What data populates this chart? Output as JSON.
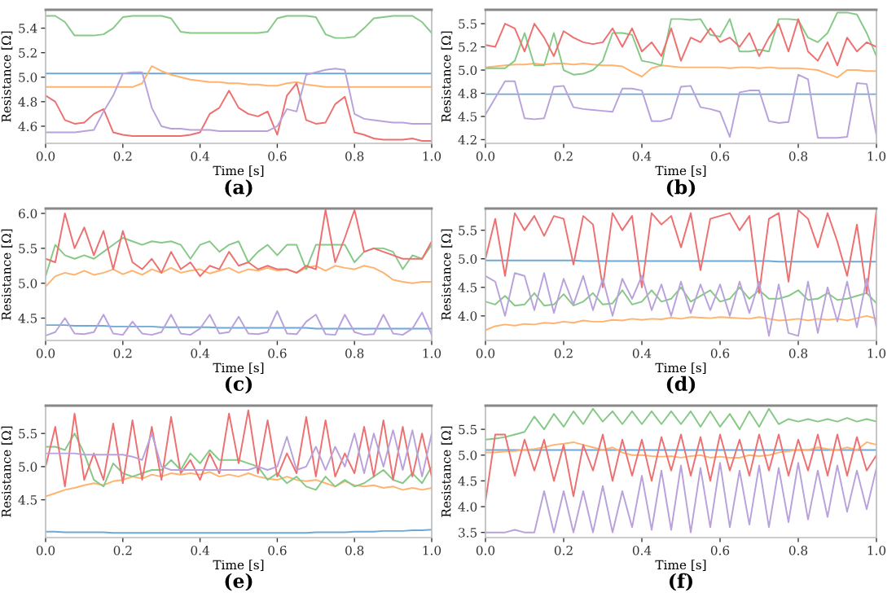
{
  "chart_data": [
    {
      "type": "line",
      "xlabel": "Time [s]",
      "ylabel": "Resistance [Ω]",
      "annotations": [
        "(a)"
      ],
      "x": [
        0,
        0.025,
        0.05,
        0.075,
        0.1,
        0.125,
        0.15,
        0.175,
        0.2,
        0.225,
        0.25,
        0.275,
        0.3,
        0.325,
        0.35,
        0.375,
        0.4,
        0.425,
        0.45,
        0.475,
        0.5,
        0.525,
        0.55,
        0.575,
        0.6,
        0.625,
        0.65,
        0.675,
        0.7,
        0.725,
        0.75,
        0.775,
        0.8,
        0.825,
        0.85,
        0.875,
        0.9,
        0.925,
        0.95,
        0.975,
        1.0
      ],
      "xlim": [
        0,
        1
      ],
      "xticks": [
        {
          "value": 0,
          "label": "0.0"
        },
        {
          "value": 0.2,
          "label": "0.2"
        },
        {
          "value": 0.4,
          "label": "0.4"
        },
        {
          "value": 0.6,
          "label": "0.6"
        },
        {
          "value": 0.8,
          "label": "0.8"
        },
        {
          "value": 1,
          "label": "1.0"
        }
      ],
      "ylim": [
        4.46,
        5.55
      ],
      "yticks": [
        {
          "value": 4.6,
          "label": "4.6"
        },
        {
          "value": 4.8,
          "label": "4.8"
        },
        {
          "value": 5.0,
          "label": "5.0"
        },
        {
          "value": 5.2,
          "label": "5.2"
        },
        {
          "value": 5.4,
          "label": "5.4"
        }
      ],
      "series": [
        {
          "color": "#6ea8d6",
          "values": [
            5.03,
            5.03,
            5.03,
            5.03,
            5.03,
            5.03,
            5.03,
            5.03,
            5.03,
            5.03,
            5.03,
            5.03,
            5.03,
            5.03,
            5.03,
            5.03,
            5.03,
            5.03,
            5.03,
            5.03,
            5.03,
            5.03,
            5.03,
            5.03,
            5.03,
            5.03,
            5.03,
            5.03,
            5.03,
            5.03,
            5.03,
            5.03,
            5.03,
            5.03,
            5.03,
            5.03,
            5.03,
            5.03,
            5.03,
            5.03,
            5.03
          ]
        },
        {
          "color": "#ffb36e",
          "values": [
            4.92,
            4.92,
            4.92,
            4.92,
            4.92,
            4.92,
            4.92,
            4.92,
            4.92,
            4.92,
            4.95,
            5.09,
            5.05,
            5.02,
            5.0,
            4.98,
            4.97,
            4.96,
            4.96,
            4.95,
            4.95,
            4.94,
            4.94,
            4.93,
            4.93,
            4.95,
            4.96,
            4.94,
            4.93,
            4.92,
            4.92,
            4.92,
            4.92,
            4.92,
            4.92,
            4.92,
            4.92,
            4.92,
            4.92,
            4.92,
            4.92
          ]
        },
        {
          "color": "#86c986",
          "values": [
            5.5,
            5.5,
            5.45,
            5.34,
            5.34,
            5.34,
            5.35,
            5.4,
            5.49,
            5.5,
            5.5,
            5.5,
            5.5,
            5.48,
            5.37,
            5.36,
            5.36,
            5.36,
            5.36,
            5.36,
            5.36,
            5.36,
            5.36,
            5.37,
            5.48,
            5.5,
            5.5,
            5.5,
            5.49,
            5.35,
            5.32,
            5.32,
            5.33,
            5.4,
            5.48,
            5.49,
            5.5,
            5.5,
            5.5,
            5.45,
            5.36
          ]
        },
        {
          "color": "#ee6f6f",
          "values": [
            4.85,
            4.8,
            4.65,
            4.62,
            4.63,
            4.7,
            4.74,
            4.55,
            4.53,
            4.52,
            4.52,
            4.52,
            4.52,
            4.52,
            4.52,
            4.53,
            4.55,
            4.7,
            4.75,
            4.89,
            4.75,
            4.7,
            4.68,
            4.72,
            4.53,
            4.85,
            4.95,
            4.65,
            4.62,
            4.63,
            4.78,
            4.84,
            4.55,
            4.53,
            4.5,
            4.49,
            4.49,
            4.49,
            4.5,
            4.48,
            4.48
          ]
        },
        {
          "color": "#b9a2dc",
          "values": [
            4.55,
            4.55,
            4.55,
            4.55,
            4.56,
            4.57,
            4.72,
            4.85,
            5.03,
            5.04,
            5.04,
            4.75,
            4.6,
            4.58,
            4.58,
            4.57,
            4.57,
            4.57,
            4.56,
            4.56,
            4.56,
            4.56,
            4.56,
            4.56,
            4.6,
            4.74,
            4.72,
            5.02,
            5.04,
            5.06,
            5.07,
            5.06,
            4.7,
            4.66,
            4.65,
            4.64,
            4.63,
            4.63,
            4.62,
            4.62,
            4.62
          ]
        }
      ]
    },
    {
      "type": "line",
      "xlabel": "Time [s]",
      "ylabel": "Resistance [Ω]",
      "annotations": [
        "(b)"
      ],
      "x": [
        0,
        0.025,
        0.05,
        0.075,
        0.1,
        0.125,
        0.15,
        0.175,
        0.2,
        0.225,
        0.25,
        0.275,
        0.3,
        0.325,
        0.35,
        0.375,
        0.4,
        0.425,
        0.45,
        0.475,
        0.5,
        0.525,
        0.55,
        0.575,
        0.6,
        0.625,
        0.65,
        0.675,
        0.7,
        0.725,
        0.75,
        0.775,
        0.8,
        0.825,
        0.85,
        0.875,
        0.9,
        0.925,
        0.95,
        0.975,
        1.0
      ],
      "xlim": [
        0,
        1
      ],
      "xticks": [
        {
          "value": 0,
          "label": "0.0"
        },
        {
          "value": 0.2,
          "label": "0.2"
        },
        {
          "value": 0.4,
          "label": "0.4"
        },
        {
          "value": 0.6,
          "label": "0.6"
        },
        {
          "value": 0.8,
          "label": "0.8"
        },
        {
          "value": 1,
          "label": "1.0"
        }
      ],
      "ylim": [
        4.21,
        5.65
      ],
      "yticks": [
        {
          "value": 4.25,
          "label": "4.2"
        },
        {
          "value": 4.5,
          "label": "4.5"
        },
        {
          "value": 4.75,
          "label": "4.8"
        },
        {
          "value": 5.0,
          "label": "5.0"
        },
        {
          "value": 5.25,
          "label": "5.2"
        },
        {
          "value": 5.5,
          "label": "5.5"
        }
      ],
      "series": [
        {
          "color": "#6ea8d6",
          "values": [
            4.74,
            4.74,
            4.74,
            4.74,
            4.74,
            4.74,
            4.74,
            4.74,
            4.74,
            4.74,
            4.74,
            4.74,
            4.74,
            4.74,
            4.74,
            4.74,
            4.74,
            4.74,
            4.74,
            4.74,
            4.74,
            4.74,
            4.74,
            4.74,
            4.74,
            4.74,
            4.74,
            4.74,
            4.74,
            4.74,
            4.74,
            4.74,
            4.74,
            4.74,
            4.74,
            4.74,
            4.74,
            4.74,
            4.74,
            4.74,
            4.74
          ]
        },
        {
          "color": "#ffb36e",
          "values": [
            5.03,
            5.04,
            5.05,
            5.06,
            5.06,
            5.07,
            5.06,
            5.07,
            5.07,
            5.06,
            5.07,
            5.06,
            5.05,
            5.05,
            5.04,
            4.98,
            4.93,
            5.02,
            5.05,
            5.04,
            5.03,
            5.03,
            5.03,
            5.03,
            5.03,
            5.02,
            5.03,
            5.03,
            5.02,
            5.03,
            5.02,
            5.02,
            5.02,
            5.01,
            5.0,
            4.96,
            4.92,
            5.0,
            5.0,
            4.99,
            4.99
          ]
        },
        {
          "color": "#86c986",
          "values": [
            5.02,
            5.02,
            5.02,
            5.1,
            5.4,
            5.05,
            5.05,
            5.4,
            5.0,
            4.95,
            4.96,
            5.0,
            5.1,
            5.4,
            5.4,
            5.38,
            5.1,
            5.08,
            5.05,
            5.55,
            5.55,
            5.54,
            5.55,
            5.38,
            5.36,
            5.55,
            5.2,
            5.2,
            5.22,
            5.2,
            5.55,
            5.55,
            5.54,
            5.35,
            5.3,
            5.4,
            5.62,
            5.62,
            5.6,
            5.4,
            5.15
          ]
        },
        {
          "color": "#ee6f6f",
          "values": [
            5.27,
            5.25,
            5.5,
            5.45,
            5.2,
            5.5,
            5.35,
            5.15,
            5.42,
            5.35,
            5.3,
            5.28,
            5.3,
            5.45,
            5.25,
            5.45,
            5.2,
            5.3,
            5.15,
            5.45,
            5.1,
            5.35,
            5.3,
            5.45,
            5.3,
            5.35,
            5.25,
            5.4,
            5.15,
            5.35,
            5.5,
            5.2,
            5.55,
            5.2,
            5.1,
            5.3,
            5.05,
            5.35,
            5.2,
            5.3,
            5.25
          ]
        },
        {
          "color": "#b9a2dc",
          "values": [
            4.52,
            4.7,
            4.88,
            4.88,
            4.48,
            4.47,
            4.48,
            4.82,
            4.83,
            4.6,
            4.58,
            4.57,
            4.56,
            4.55,
            4.8,
            4.8,
            4.78,
            4.45,
            4.45,
            4.48,
            4.82,
            4.83,
            4.6,
            4.58,
            4.55,
            4.28,
            4.76,
            4.78,
            4.78,
            4.45,
            4.43,
            4.44,
            4.95,
            4.9,
            4.27,
            4.27,
            4.27,
            4.28,
            4.86,
            4.85,
            4.3
          ]
        }
      ]
    },
    {
      "type": "line",
      "xlabel": "Time [s]",
      "ylabel": "Resistance [Ω]",
      "annotations": [
        "(c)"
      ],
      "x": [
        0,
        0.025,
        0.05,
        0.075,
        0.1,
        0.125,
        0.15,
        0.175,
        0.2,
        0.225,
        0.25,
        0.275,
        0.3,
        0.325,
        0.35,
        0.375,
        0.4,
        0.425,
        0.45,
        0.475,
        0.5,
        0.525,
        0.55,
        0.575,
        0.6,
        0.625,
        0.65,
        0.675,
        0.7,
        0.725,
        0.75,
        0.775,
        0.8,
        0.825,
        0.85,
        0.875,
        0.9,
        0.925,
        0.95,
        0.975,
        1.0
      ],
      "xlim": [
        0,
        1
      ],
      "xticks": [
        {
          "value": 0,
          "label": "0.0"
        },
        {
          "value": 0.2,
          "label": "0.2"
        },
        {
          "value": 0.4,
          "label": "0.4"
        },
        {
          "value": 0.6,
          "label": "0.6"
        },
        {
          "value": 0.8,
          "label": "0.8"
        },
        {
          "value": 1,
          "label": "1.0"
        }
      ],
      "ylim": [
        4.18,
        6.07
      ],
      "yticks": [
        {
          "value": 4.5,
          "label": "4.5"
        },
        {
          "value": 5.0,
          "label": "5.0"
        },
        {
          "value": 5.5,
          "label": "5.5"
        },
        {
          "value": 6.0,
          "label": "6.0"
        }
      ],
      "series": [
        {
          "color": "#6ea8d6",
          "values": [
            4.4,
            4.4,
            4.4,
            4.39,
            4.39,
            4.39,
            4.39,
            4.38,
            4.38,
            4.38,
            4.38,
            4.38,
            4.37,
            4.37,
            4.37,
            4.37,
            4.37,
            4.37,
            4.36,
            4.36,
            4.36,
            4.36,
            4.36,
            4.36,
            4.36,
            4.36,
            4.36,
            4.36,
            4.35,
            4.35,
            4.35,
            4.35,
            4.35,
            4.35,
            4.35,
            4.35,
            4.35,
            4.35,
            4.35,
            4.35,
            4.35
          ]
        },
        {
          "color": "#ffb36e",
          "values": [
            4.95,
            5.1,
            5.15,
            5.12,
            5.18,
            5.12,
            5.15,
            5.2,
            5.13,
            5.18,
            5.12,
            5.2,
            5.15,
            5.22,
            5.15,
            5.18,
            5.2,
            5.14,
            5.18,
            5.22,
            5.15,
            5.2,
            5.18,
            5.22,
            5.18,
            5.2,
            5.15,
            5.22,
            5.25,
            5.18,
            5.25,
            5.22,
            5.2,
            5.25,
            5.22,
            5.15,
            5.05,
            5.02,
            5.0,
            5.02,
            5.02
          ]
        },
        {
          "color": "#86c986",
          "values": [
            5.1,
            5.55,
            5.4,
            5.35,
            5.4,
            5.35,
            5.45,
            5.55,
            5.65,
            5.6,
            5.55,
            5.6,
            5.58,
            5.6,
            5.55,
            5.35,
            5.55,
            5.6,
            5.45,
            5.55,
            5.6,
            5.3,
            5.45,
            5.55,
            5.4,
            5.55,
            5.55,
            5.2,
            5.55,
            5.55,
            5.55,
            5.55,
            5.3,
            5.45,
            5.5,
            5.5,
            5.45,
            5.2,
            5.4,
            5.35,
            5.55
          ]
        },
        {
          "color": "#ee6f6f",
          "values": [
            5.35,
            5.3,
            6.0,
            5.5,
            5.8,
            5.4,
            5.75,
            5.2,
            5.75,
            5.3,
            5.2,
            5.35,
            5.15,
            5.45,
            5.2,
            5.3,
            5.1,
            5.25,
            5.2,
            5.45,
            5.25,
            5.3,
            5.2,
            5.25,
            5.2,
            5.2,
            5.15,
            5.25,
            5.2,
            6.05,
            5.3,
            5.65,
            6.05,
            5.45,
            5.5,
            5.45,
            5.4,
            5.35,
            5.35,
            5.35,
            5.6
          ]
        },
        {
          "color": "#b9a2dc",
          "values": [
            4.25,
            4.3,
            4.5,
            4.28,
            4.27,
            4.3,
            4.55,
            4.28,
            4.26,
            4.45,
            4.28,
            4.26,
            4.3,
            4.55,
            4.28,
            4.26,
            4.35,
            4.55,
            4.28,
            4.3,
            4.52,
            4.28,
            4.27,
            4.3,
            4.6,
            4.28,
            4.27,
            4.45,
            4.55,
            4.27,
            4.26,
            4.55,
            4.3,
            4.26,
            4.27,
            4.55,
            4.28,
            4.26,
            4.35,
            4.58,
            4.26
          ]
        }
      ]
    },
    {
      "type": "line",
      "xlabel": "Time [s]",
      "ylabel": "Resistance [Ω]",
      "annotations": [
        "(d)"
      ],
      "x": [
        0,
        0.025,
        0.05,
        0.075,
        0.1,
        0.125,
        0.15,
        0.175,
        0.2,
        0.225,
        0.25,
        0.275,
        0.3,
        0.325,
        0.35,
        0.375,
        0.4,
        0.425,
        0.45,
        0.475,
        0.5,
        0.525,
        0.55,
        0.575,
        0.6,
        0.625,
        0.65,
        0.675,
        0.7,
        0.725,
        0.75,
        0.775,
        0.8,
        0.825,
        0.85,
        0.875,
        0.9,
        0.925,
        0.95,
        0.975,
        1.0
      ],
      "xlim": [
        0,
        1
      ],
      "xticks": [
        {
          "value": 0,
          "label": "0.0"
        },
        {
          "value": 0.2,
          "label": "0.2"
        },
        {
          "value": 0.4,
          "label": "0.4"
        },
        {
          "value": 0.6,
          "label": "0.6"
        },
        {
          "value": 0.8,
          "label": "0.8"
        },
        {
          "value": 1,
          "label": "1.0"
        }
      ],
      "ylim": [
        3.57,
        5.88
      ],
      "yticks": [
        {
          "value": 4.0,
          "label": "4.0"
        },
        {
          "value": 4.5,
          "label": "4.5"
        },
        {
          "value": 5.0,
          "label": "5.0"
        },
        {
          "value": 5.5,
          "label": "5.5"
        }
      ],
      "series": [
        {
          "color": "#6ea8d6",
          "values": [
            4.97,
            4.97,
            4.97,
            4.97,
            4.97,
            4.97,
            4.97,
            4.97,
            4.97,
            4.97,
            4.96,
            4.96,
            4.96,
            4.96,
            4.96,
            4.96,
            4.96,
            4.96,
            4.96,
            4.96,
            4.96,
            4.96,
            4.96,
            4.96,
            4.96,
            4.96,
            4.96,
            4.96,
            4.96,
            4.96,
            4.95,
            4.95,
            4.95,
            4.95,
            4.95,
            4.95,
            4.95,
            4.95,
            4.95,
            4.95,
            4.95
          ]
        },
        {
          "color": "#ffb36e",
          "values": [
            3.75,
            3.82,
            3.85,
            3.83,
            3.86,
            3.85,
            3.88,
            3.87,
            3.9,
            3.88,
            3.92,
            3.9,
            3.9,
            3.93,
            3.92,
            3.95,
            3.93,
            3.95,
            3.94,
            3.97,
            3.95,
            3.98,
            3.97,
            3.96,
            3.98,
            3.97,
            3.96,
            3.95,
            3.98,
            3.95,
            3.92,
            3.93,
            3.95,
            3.92,
            3.95,
            3.93,
            3.95,
            3.92,
            3.96,
            4.0,
            3.95
          ]
        },
        {
          "color": "#86c986",
          "values": [
            4.25,
            4.2,
            4.35,
            4.18,
            4.2,
            4.4,
            4.18,
            4.2,
            4.38,
            4.18,
            4.25,
            4.4,
            4.2,
            4.22,
            4.45,
            4.2,
            4.25,
            4.45,
            4.25,
            4.3,
            4.5,
            4.25,
            4.35,
            4.45,
            4.25,
            4.3,
            4.5,
            4.3,
            4.45,
            4.3,
            4.3,
            4.35,
            4.45,
            4.28,
            4.3,
            4.4,
            4.28,
            4.3,
            4.35,
            4.4,
            4.22
          ]
        },
        {
          "color": "#ee6f6f",
          "values": [
            5.0,
            5.7,
            4.7,
            5.8,
            5.5,
            5.75,
            5.4,
            5.75,
            5.7,
            4.9,
            5.75,
            5.6,
            4.5,
            5.8,
            5.5,
            5.75,
            4.5,
            5.8,
            5.6,
            5.75,
            5.2,
            5.8,
            4.8,
            5.7,
            5.75,
            5.8,
            5.5,
            5.75,
            4.4,
            5.7,
            5.8,
            4.6,
            5.85,
            5.7,
            5.2,
            5.8,
            5.3,
            4.7,
            5.6,
            4.4,
            5.85
          ]
        },
        {
          "color": "#b9a2dc",
          "values": [
            4.7,
            4.6,
            4.0,
            4.75,
            4.7,
            4.1,
            4.75,
            4.05,
            4.65,
            4.2,
            4.7,
            4.1,
            4.65,
            4.0,
            4.65,
            4.3,
            4.7,
            4.1,
            4.55,
            4.0,
            4.6,
            4.05,
            4.55,
            4.1,
            4.55,
            4.0,
            4.6,
            4.05,
            4.6,
            3.65,
            4.55,
            3.7,
            3.65,
            4.6,
            3.7,
            4.5,
            3.9,
            4.6,
            3.8,
            4.65,
            3.8
          ]
        }
      ]
    },
    {
      "type": "line",
      "xlabel": "Time [s]",
      "ylabel": "Resistance [Ω]",
      "annotations": [
        "(e)"
      ],
      "x": [
        0,
        0.025,
        0.05,
        0.075,
        0.1,
        0.125,
        0.15,
        0.175,
        0.2,
        0.225,
        0.25,
        0.275,
        0.3,
        0.325,
        0.35,
        0.375,
        0.4,
        0.425,
        0.45,
        0.475,
        0.5,
        0.525,
        0.55,
        0.575,
        0.6,
        0.625,
        0.65,
        0.675,
        0.7,
        0.725,
        0.75,
        0.775,
        0.8,
        0.825,
        0.85,
        0.875,
        0.9,
        0.925,
        0.95,
        0.975,
        1.0
      ],
      "xlim": [
        0,
        1
      ],
      "xticks": [
        {
          "value": 0,
          "label": "0.0"
        },
        {
          "value": 0.2,
          "label": "0.2"
        },
        {
          "value": 0.4,
          "label": "0.4"
        },
        {
          "value": 0.6,
          "label": "0.6"
        },
        {
          "value": 0.8,
          "label": "0.8"
        },
        {
          "value": 1,
          "label": "1.0"
        }
      ],
      "ylim": [
        3.93,
        5.92
      ],
      "yticks": [
        {
          "value": 4.5,
          "label": "4.5"
        },
        {
          "value": 5.0,
          "label": "5.0"
        },
        {
          "value": 5.5,
          "label": "5.5"
        }
      ],
      "series": [
        {
          "color": "#6ea8d6",
          "values": [
            4.02,
            4.02,
            4.01,
            4.01,
            4.01,
            4.01,
            4.01,
            4.0,
            4.0,
            4.0,
            4.0,
            4.0,
            4.0,
            4.0,
            4.0,
            4.0,
            4.0,
            4.0,
            4.0,
            4.0,
            4.0,
            4.0,
            4.0,
            4.0,
            4.0,
            4.0,
            4.0,
            4.0,
            4.01,
            4.01,
            4.01,
            4.01,
            4.02,
            4.02,
            4.02,
            4.03,
            4.03,
            4.03,
            4.04,
            4.04,
            4.05
          ]
        },
        {
          "color": "#ffb36e",
          "values": [
            4.55,
            4.6,
            4.65,
            4.68,
            4.72,
            4.75,
            4.72,
            4.78,
            4.8,
            4.85,
            4.82,
            4.88,
            4.85,
            4.9,
            4.88,
            4.9,
            4.88,
            4.92,
            4.85,
            4.88,
            4.85,
            4.9,
            4.85,
            4.82,
            4.8,
            4.85,
            4.8,
            4.78,
            4.8,
            4.75,
            4.7,
            4.78,
            4.72,
            4.7,
            4.72,
            4.68,
            4.7,
            4.65,
            4.68,
            4.65,
            4.68
          ]
        },
        {
          "color": "#86c986",
          "values": [
            5.3,
            5.3,
            5.25,
            5.5,
            5.2,
            4.8,
            4.7,
            5.05,
            4.9,
            4.85,
            4.9,
            4.95,
            4.95,
            5.1,
            4.95,
            5.2,
            5.05,
            5.25,
            5.1,
            5.1,
            5.1,
            5.05,
            5.0,
            4.8,
            4.9,
            4.75,
            4.85,
            4.7,
            4.65,
            4.85,
            4.7,
            4.8,
            4.7,
            4.75,
            4.85,
            4.95,
            4.8,
            4.75,
            4.9,
            4.75,
            5.0
          ]
        },
        {
          "color": "#ee6f6f",
          "values": [
            5.0,
            5.6,
            4.7,
            5.8,
            4.8,
            5.2,
            4.8,
            5.65,
            4.75,
            5.7,
            4.8,
            5.6,
            4.8,
            5.75,
            4.9,
            5.1,
            4.8,
            5.2,
            4.9,
            5.8,
            5.05,
            5.85,
            4.9,
            5.7,
            4.85,
            5.2,
            4.9,
            5.75,
            4.85,
            5.7,
            4.85,
            5.2,
            4.9,
            5.6,
            4.85,
            5.7,
            4.8,
            5.6,
            4.85,
            5.5,
            4.85
          ]
        },
        {
          "color": "#b9a2dc",
          "values": [
            5.2,
            5.2,
            5.2,
            5.2,
            5.18,
            5.18,
            5.18,
            5.18,
            5.18,
            5.15,
            5.1,
            5.5,
            5.0,
            4.95,
            4.95,
            4.95,
            4.95,
            4.95,
            4.95,
            4.95,
            4.95,
            4.95,
            5.0,
            4.95,
            5.0,
            5.45,
            4.95,
            5.0,
            5.3,
            4.95,
            5.3,
            5.0,
            5.5,
            4.9,
            5.5,
            5.0,
            5.55,
            4.95,
            5.55,
            4.85,
            5.5
          ]
        }
      ]
    },
    {
      "type": "line",
      "xlabel": "Time [s]",
      "ylabel": "Resistance [Ω]",
      "annotations": [
        "(f)"
      ],
      "x": [
        0,
        0.025,
        0.05,
        0.075,
        0.1,
        0.125,
        0.15,
        0.175,
        0.2,
        0.225,
        0.25,
        0.275,
        0.3,
        0.325,
        0.35,
        0.375,
        0.4,
        0.425,
        0.45,
        0.475,
        0.5,
        0.525,
        0.55,
        0.575,
        0.6,
        0.625,
        0.65,
        0.675,
        0.7,
        0.725,
        0.75,
        0.775,
        0.8,
        0.825,
        0.85,
        0.875,
        0.9,
        0.925,
        0.95,
        0.975,
        1.0
      ],
      "xlim": [
        0,
        1
      ],
      "xticks": [
        {
          "value": 0,
          "label": "0.0"
        },
        {
          "value": 0.2,
          "label": "0.2"
        },
        {
          "value": 0.4,
          "label": "0.4"
        },
        {
          "value": 0.6,
          "label": "0.6"
        },
        {
          "value": 0.8,
          "label": "0.8"
        },
        {
          "value": 1,
          "label": "1.0"
        }
      ],
      "ylim": [
        3.4,
        5.96
      ],
      "yticks": [
        {
          "value": 3.5,
          "label": "3.5"
        },
        {
          "value": 4.0,
          "label": "4.0"
        },
        {
          "value": 4.5,
          "label": "4.5"
        },
        {
          "value": 5.0,
          "label": "5.0"
        },
        {
          "value": 5.5,
          "label": "5.5"
        }
      ],
      "series": [
        {
          "color": "#6ea8d6",
          "values": [
            5.1,
            5.1,
            5.1,
            5.1,
            5.1,
            5.1,
            5.1,
            5.1,
            5.1,
            5.1,
            5.1,
            5.1,
            5.1,
            5.1,
            5.1,
            5.1,
            5.1,
            5.1,
            5.1,
            5.1,
            5.1,
            5.1,
            5.1,
            5.1,
            5.1,
            5.1,
            5.1,
            5.1,
            5.1,
            5.1,
            5.1,
            5.1,
            5.1,
            5.1,
            5.1,
            5.1,
            5.1,
            5.1,
            5.1,
            5.1,
            5.1
          ]
        },
        {
          "color": "#ffb36e",
          "values": [
            5.05,
            5.05,
            5.07,
            5.08,
            5.1,
            5.12,
            5.15,
            5.2,
            5.22,
            5.25,
            5.2,
            5.15,
            5.1,
            5.15,
            5.05,
            5.0,
            5.0,
            4.98,
            4.97,
            4.98,
            4.95,
            4.98,
            5.0,
            4.95,
            4.97,
            4.95,
            4.95,
            5.0,
            4.98,
            5.0,
            5.05,
            5.08,
            5.1,
            5.1,
            5.15,
            5.12,
            5.1,
            5.15,
            5.1,
            5.25,
            5.2
          ]
        },
        {
          "color": "#86c986",
          "values": [
            5.3,
            5.32,
            5.35,
            5.4,
            5.45,
            5.75,
            5.5,
            5.8,
            5.55,
            5.85,
            5.6,
            5.9,
            5.65,
            5.85,
            5.6,
            5.85,
            5.6,
            5.85,
            5.6,
            5.85,
            5.6,
            5.85,
            5.55,
            5.85,
            5.55,
            5.8,
            5.5,
            5.85,
            5.55,
            5.9,
            5.6,
            5.7,
            5.65,
            5.7,
            5.65,
            5.7,
            5.65,
            5.72,
            5.65,
            5.7,
            5.65
          ]
        },
        {
          "color": "#ee6f6f",
          "values": [
            4.1,
            5.4,
            5.4,
            4.6,
            5.3,
            4.7,
            5.3,
            4.5,
            5.2,
            4.2,
            5.2,
            4.7,
            5.4,
            4.5,
            5.3,
            4.6,
            5.3,
            4.5,
            5.35,
            4.7,
            5.4,
            4.6,
            5.35,
            4.5,
            5.4,
            4.7,
            5.3,
            4.6,
            5.4,
            4.7,
            5.4,
            4.6,
            5.3,
            4.7,
            5.4,
            4.6,
            5.4,
            4.6,
            5.35,
            4.7,
            5.0
          ]
        },
        {
          "color": "#b9a2dc",
          "values": [
            3.5,
            3.5,
            3.5,
            3.55,
            3.5,
            3.5,
            4.3,
            3.5,
            4.3,
            3.5,
            4.3,
            3.5,
            4.4,
            3.5,
            4.3,
            3.6,
            4.6,
            3.55,
            4.7,
            3.55,
            4.8,
            3.5,
            4.75,
            3.6,
            4.85,
            3.6,
            4.7,
            3.65,
            4.8,
            3.6,
            4.75,
            3.7,
            4.85,
            3.75,
            4.7,
            3.8,
            4.8,
            3.9,
            4.7,
            3.95,
            4.75
          ]
        }
      ]
    }
  ]
}
